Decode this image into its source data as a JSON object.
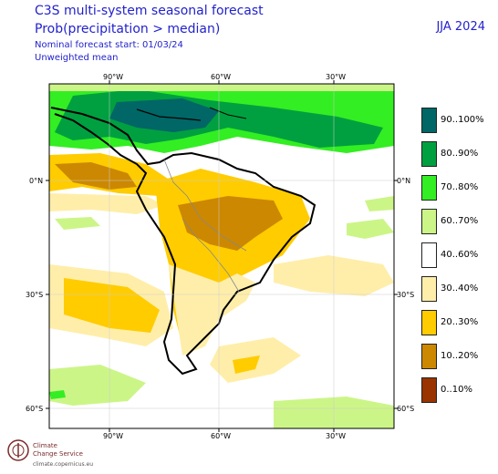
{
  "header": {
    "title": "C3S multi-system seasonal forecast",
    "variable": "Prob(precipitation > median)",
    "start": "Nominal forecast start: 01/03/24",
    "weighting": "Unweighted mean",
    "season": "JJA 2024"
  },
  "map": {
    "top_lon_labels": [
      "90°W",
      "60°W",
      "30°W"
    ],
    "bottom_lon_labels": [
      "90°W",
      "60°W",
      "30°W"
    ],
    "left_lat_labels": [
      "0°N",
      "30°S",
      "60°S"
    ],
    "right_lat_labels": [
      "0°N",
      "30°S",
      "60°S"
    ]
  },
  "legend": [
    {
      "label": "90..100%",
      "color": "#006666"
    },
    {
      "label": "80..90%",
      "color": "#00a040"
    },
    {
      "label": "70..80%",
      "color": "#33ee22"
    },
    {
      "label": "60..70%",
      "color": "#ccf588"
    },
    {
      "label": "40..60%",
      "color": "#ffffff"
    },
    {
      "label": "30..40%",
      "color": "#ffeeaa"
    },
    {
      "label": "20..30%",
      "color": "#ffcc00"
    },
    {
      "label": "10..20%",
      "color": "#cc8800"
    },
    {
      "label": "0..10%",
      "color": "#993300"
    }
  ],
  "logo": {
    "line1": "Climate",
    "line2": "Change Service",
    "url": "climate.copernicus.eu"
  }
}
